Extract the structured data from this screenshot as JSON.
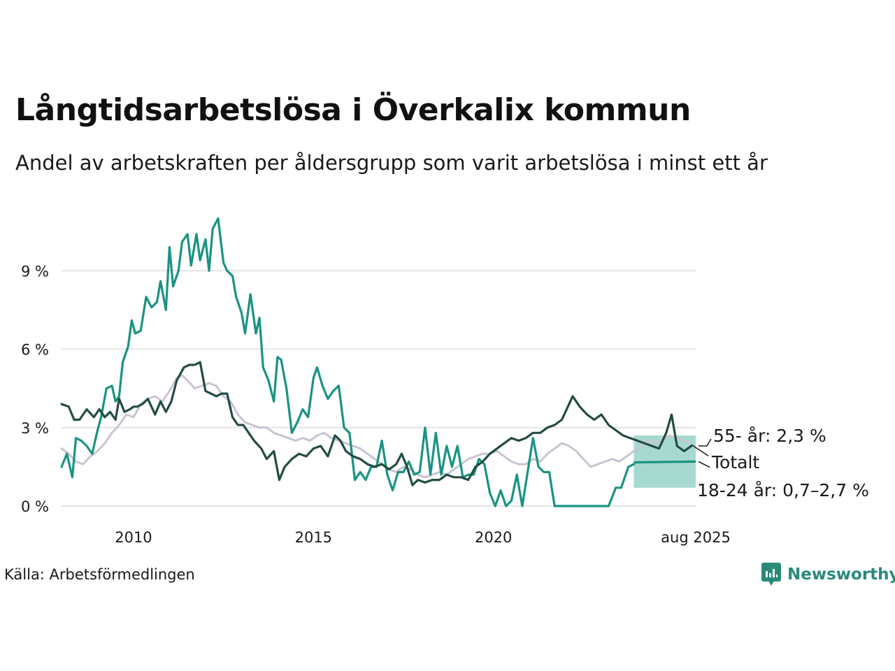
{
  "title": "Långtidsarbetslösa i Överkalix kommun",
  "subtitle": "Andel av arbetskraften per åldersgrupp som varit arbetslösa i minst ett år",
  "source": "Källa: Arbetsförmedlingen",
  "brand": "Newsworthy",
  "colors": {
    "age_18_24": "#1a9382",
    "age_55": "#234c44",
    "total": "#c9c4d3",
    "band": "#a6d9cf",
    "grid": "#e3e3e3",
    "brand": "#2a8a7a"
  },
  "chart_data": {
    "type": "line",
    "x_ticks": [
      "2010",
      "2015",
      "2020",
      "aug 2025"
    ],
    "y_ticks": [
      "0 %",
      "3 %",
      "6 %",
      "9 %"
    ],
    "ylim": [
      0,
      11.2
    ],
    "xlim": [
      2008.0,
      2025.62
    ],
    "annotations": [
      {
        "series": "55+",
        "text": "55- år: 2,3 %"
      },
      {
        "series": "Totalt",
        "text": "Totalt"
      },
      {
        "series": "18-24",
        "text": "18-24 år: 0,7–2,7 %"
      }
    ],
    "forecast_band": {
      "series": "18-24",
      "x": [
        2023.9,
        2025.62
      ],
      "lower": 0.7,
      "upper": 2.7,
      "mid": 1.7
    },
    "series": [
      {
        "name": "18-24",
        "x": [
          2008.0,
          2008.15,
          2008.3,
          2008.4,
          2008.55,
          2008.7,
          2008.85,
          2009.0,
          2009.1,
          2009.25,
          2009.4,
          2009.5,
          2009.6,
          2009.7,
          2009.85,
          2009.95,
          2010.05,
          2010.2,
          2010.35,
          2010.5,
          2010.65,
          2010.75,
          2010.9,
          2011.0,
          2011.1,
          2011.25,
          2011.35,
          2011.5,
          2011.6,
          2011.75,
          2011.85,
          2012.0,
          2012.1,
          2012.2,
          2012.35,
          2012.5,
          2012.6,
          2012.75,
          2012.85,
          2013.0,
          2013.1,
          2013.25,
          2013.4,
          2013.5,
          2013.6,
          2013.75,
          2013.9,
          2014.0,
          2014.1,
          2014.25,
          2014.4,
          2014.55,
          2014.7,
          2014.85,
          2015.0,
          2015.1,
          2015.25,
          2015.4,
          2015.55,
          2015.7,
          2015.85,
          2016.0,
          2016.15,
          2016.3,
          2016.45,
          2016.6,
          2016.75,
          2016.9,
          2017.05,
          2017.2,
          2017.35,
          2017.5,
          2017.65,
          2017.8,
          2017.95,
          2018.1,
          2018.25,
          2018.4,
          2018.55,
          2018.7,
          2018.85,
          2019.0,
          2019.15,
          2019.3,
          2019.45,
          2019.6,
          2019.75,
          2019.9,
          2020.05,
          2020.2,
          2020.35,
          2020.5,
          2020.65,
          2020.8,
          2020.95,
          2021.1,
          2021.25,
          2021.4,
          2021.55,
          2021.7,
          2021.85,
          2022.0,
          2022.2,
          2022.4,
          2022.55,
          2022.8,
          2023.0,
          2023.2,
          2023.4,
          2023.55,
          2023.75,
          2023.9
        ],
        "values": [
          1.5,
          2.0,
          1.1,
          2.6,
          2.5,
          2.3,
          2.0,
          2.9,
          3.4,
          4.5,
          4.6,
          4.0,
          4.2,
          5.5,
          6.1,
          7.1,
          6.6,
          6.7,
          8.0,
          7.6,
          7.8,
          8.6,
          7.5,
          9.9,
          8.4,
          9.0,
          10.1,
          10.4,
          9.2,
          10.4,
          9.4,
          10.2,
          9.0,
          10.6,
          11.0,
          9.3,
          9.0,
          8.8,
          8.0,
          7.4,
          6.6,
          8.1,
          6.6,
          7.2,
          5.3,
          4.8,
          4.0,
          5.7,
          5.6,
          4.5,
          2.8,
          3.2,
          3.7,
          3.4,
          4.9,
          5.3,
          4.6,
          4.1,
          4.4,
          4.6,
          3.0,
          2.8,
          1.0,
          1.3,
          1.0,
          1.5,
          1.5,
          2.5,
          1.2,
          0.6,
          1.3,
          1.3,
          1.7,
          1.2,
          1.3,
          3.0,
          1.2,
          2.8,
          1.2,
          2.3,
          1.5,
          2.3,
          1.1,
          1.2,
          1.2,
          1.8,
          1.6,
          0.5,
          0.0,
          0.6,
          0.0,
          0.2,
          1.2,
          0.0,
          1.3,
          2.6,
          1.5,
          1.3,
          1.3,
          0.0,
          0.0,
          0.0,
          0.0,
          0.0,
          0.0,
          0.0,
          0.0,
          0.0,
          0.7,
          0.7,
          1.5,
          1.6
        ]
      },
      {
        "name": "Totalt",
        "x": [
          2008.0,
          2008.2,
          2008.4,
          2008.6,
          2008.8,
          2009.0,
          2009.2,
          2009.4,
          2009.6,
          2009.8,
          2010.0,
          2010.2,
          2010.4,
          2010.6,
          2010.8,
          2011.0,
          2011.2,
          2011.35,
          2011.5,
          2011.7,
          2011.9,
          2012.1,
          2012.3,
          2012.5,
          2012.7,
          2012.9,
          2013.1,
          2013.3,
          2013.5,
          2013.7,
          2013.9,
          2014.1,
          2014.3,
          2014.5,
          2014.7,
          2014.9,
          2015.1,
          2015.3,
          2015.5,
          2015.7,
          2015.9,
          2016.1,
          2016.3,
          2016.5,
          2016.7,
          2016.9,
          2017.1,
          2017.3,
          2017.5,
          2017.7,
          2017.9,
          2018.1,
          2018.3,
          2018.5,
          2018.7,
          2018.9,
          2019.1,
          2019.3,
          2019.5,
          2019.7,
          2019.9,
          2020.1,
          2020.3,
          2020.5,
          2020.7,
          2020.9,
          2021.1,
          2021.3,
          2021.5,
          2021.7,
          2021.9,
          2022.1,
          2022.3,
          2022.5,
          2022.7,
          2022.9,
          2023.1,
          2023.3,
          2023.5,
          2023.7,
          2023.9,
          2024.1,
          2024.3,
          2024.5,
          2024.7,
          2024.9,
          2025.1,
          2025.3,
          2025.5
        ],
        "values": [
          2.2,
          2.0,
          1.7,
          1.6,
          1.9,
          2.1,
          2.4,
          2.8,
          3.1,
          3.5,
          3.4,
          3.9,
          4.1,
          4.2,
          4.0,
          4.4,
          4.9,
          5.0,
          4.8,
          4.5,
          4.6,
          4.7,
          4.6,
          4.2,
          4.0,
          3.5,
          3.2,
          3.1,
          3.0,
          3.0,
          2.8,
          2.7,
          2.6,
          2.5,
          2.6,
          2.5,
          2.7,
          2.8,
          2.6,
          2.5,
          2.4,
          2.3,
          2.2,
          2.0,
          1.8,
          1.6,
          1.4,
          1.3,
          1.5,
          1.4,
          1.2,
          1.1,
          1.2,
          1.3,
          1.2,
          1.4,
          1.6,
          1.8,
          1.9,
          2.0,
          2.0,
          2.1,
          1.9,
          1.7,
          1.6,
          1.6,
          1.8,
          1.7,
          2.0,
          2.2,
          2.4,
          2.3,
          2.1,
          1.8,
          1.5,
          1.6,
          1.7,
          1.8,
          1.7,
          1.9,
          2.1,
          2.3,
          2.5,
          2.4,
          2.5,
          2.7,
          2.6,
          2.5,
          2.4
        ]
      },
      {
        "name": "55+",
        "x": [
          2008.0,
          2008.2,
          2008.35,
          2008.5,
          2008.7,
          2008.9,
          2009.05,
          2009.2,
          2009.35,
          2009.5,
          2009.6,
          2009.75,
          2009.9,
          2010.0,
          2010.1,
          2010.25,
          2010.4,
          2010.6,
          2010.75,
          2010.9,
          2011.05,
          2011.2,
          2011.4,
          2011.55,
          2011.7,
          2011.85,
          2012.0,
          2012.15,
          2012.3,
          2012.45,
          2012.6,
          2012.75,
          2012.9,
          2013.05,
          2013.2,
          2013.35,
          2013.55,
          2013.7,
          2013.9,
          2014.05,
          2014.2,
          2014.4,
          2014.6,
          2014.8,
          2015.0,
          2015.2,
          2015.4,
          2015.6,
          2015.75,
          2015.9,
          2016.1,
          2016.3,
          2016.5,
          2016.7,
          2016.9,
          2017.1,
          2017.3,
          2017.45,
          2017.6,
          2017.75,
          2017.9,
          2018.1,
          2018.3,
          2018.5,
          2018.7,
          2018.9,
          2019.1,
          2019.3,
          2019.5,
          2019.7,
          2019.9,
          2020.1,
          2020.3,
          2020.5,
          2020.7,
          2020.9,
          2021.1,
          2021.3,
          2021.5,
          2021.7,
          2021.9,
          2022.0,
          2022.2,
          2022.4,
          2022.6,
          2022.8,
          2023.0,
          2023.2,
          2023.4,
          2023.6,
          2023.8,
          2024.0,
          2024.2,
          2024.4,
          2024.6,
          2024.8,
          2024.95,
          2025.1,
          2025.3,
          2025.5
        ],
        "values": [
          3.9,
          3.8,
          3.3,
          3.3,
          3.7,
          3.4,
          3.7,
          3.4,
          3.6,
          3.3,
          4.1,
          3.6,
          3.7,
          3.8,
          3.8,
          3.9,
          4.1,
          3.5,
          4.0,
          3.6,
          4.0,
          4.8,
          5.3,
          5.4,
          5.4,
          5.5,
          4.4,
          4.3,
          4.2,
          4.3,
          4.3,
          3.4,
          3.1,
          3.1,
          2.8,
          2.5,
          2.2,
          1.8,
          2.1,
          1.0,
          1.5,
          1.8,
          2.0,
          1.9,
          2.2,
          2.3,
          1.9,
          2.7,
          2.5,
          2.1,
          1.9,
          1.8,
          1.6,
          1.5,
          1.6,
          1.4,
          1.6,
          2.0,
          1.5,
          0.8,
          1.0,
          0.9,
          1.0,
          1.0,
          1.2,
          1.1,
          1.1,
          1.0,
          1.5,
          1.7,
          2.0,
          2.2,
          2.4,
          2.6,
          2.5,
          2.6,
          2.8,
          2.8,
          3.0,
          3.1,
          3.3,
          3.6,
          4.2,
          3.8,
          3.5,
          3.3,
          3.5,
          3.1,
          2.9,
          2.7,
          2.6,
          2.5,
          2.4,
          2.3,
          2.2,
          2.8,
          3.5,
          2.3,
          2.1,
          2.3
        ]
      }
    ]
  }
}
